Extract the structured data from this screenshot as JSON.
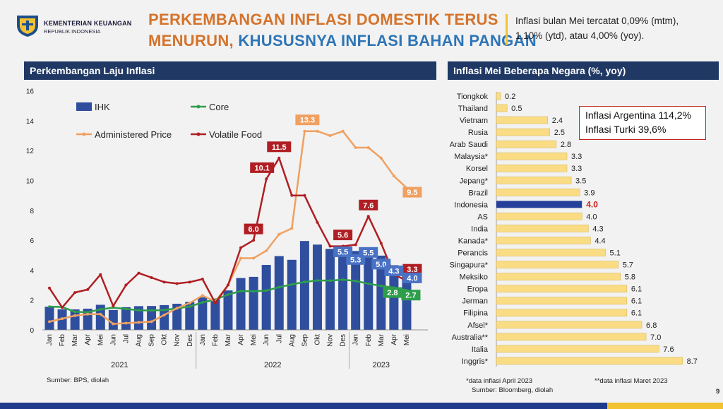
{
  "header": {
    "org_line1": "KEMENTERIAN KEUANGAN",
    "org_line2": "REPUBLIK INDONESIA",
    "title_line1": "PERKEMBANGAN INFLASI DOMESTIK TERUS",
    "title_line2_a": "MENURUN, ",
    "title_line2_b": "KHUSUSNYA INFLASI BAHAN PANGAN",
    "summary_line1": "Inflasi bulan Mei tercatat 0,09% (mtm),",
    "summary_line2": "1,10% (ytd), atau 4,00% (yoy).",
    "page_number": "9"
  },
  "left_panel": {
    "heading": "Perkembangan Laju Inflasi",
    "source": "Sumber: BPS, diolah"
  },
  "right_panel": {
    "heading": "Inflasi Mei Beberapa Negara (%, yoy)",
    "callout_line1": "Inflasi Argentina 114,2%",
    "callout_line2": "Inflasi Turki 39,6%",
    "note1": "*data inflasi April 2023",
    "note2": "**data inflasi Maret 2023",
    "source": "Sumber: Bloomberg, diolah"
  },
  "colors": {
    "ihk": "#2f4f9e",
    "core": "#2e9e4a",
    "administered": "#f0a060",
    "volatile": "#b01e23",
    "country_bar": "#f9dc84",
    "indonesia_bar": "#24409a",
    "indonesia_label": "#d0201a"
  },
  "chart_data": [
    {
      "type": "bar+line",
      "categories": [
        "Jan",
        "Feb",
        "Mar",
        "Apr",
        "Mei",
        "Jun",
        "Jul",
        "Aug",
        "Sep",
        "Okt",
        "Nov",
        "Des",
        "Jan",
        "Feb",
        "Mar",
        "Apr",
        "Mei",
        "Jun",
        "Jul",
        "Aug",
        "Sep",
        "Okt",
        "Nov",
        "Des",
        "Jan",
        "Feb",
        "Mar",
        "Apr",
        "Mei"
      ],
      "year_labels": [
        "2021",
        "2022",
        "2023"
      ],
      "ylim": [
        0,
        16
      ],
      "yticks": [
        "0",
        "2",
        "4",
        "6",
        "8",
        "10",
        "12",
        "14",
        "16"
      ],
      "series": [
        {
          "name": "IHK",
          "type": "bar",
          "values": [
            1.55,
            1.38,
            1.37,
            1.42,
            1.68,
            1.33,
            1.52,
            1.59,
            1.6,
            1.66,
            1.75,
            1.87,
            2.18,
            2.06,
            2.64,
            3.47,
            3.55,
            4.35,
            4.94,
            4.69,
            5.95,
            5.71,
            5.42,
            5.51,
            5.28,
            5.47,
            4.97,
            4.33,
            4.0
          ]
        },
        {
          "name": "Core",
          "type": "line",
          "values": [
            1.56,
            1.53,
            1.21,
            1.18,
            1.37,
            1.49,
            1.4,
            1.31,
            1.3,
            1.33,
            1.44,
            1.56,
            1.84,
            2.03,
            2.37,
            2.6,
            2.58,
            2.63,
            2.86,
            3.04,
            3.21,
            3.31,
            3.3,
            3.36,
            3.27,
            3.09,
            2.94,
            2.83,
            2.66
          ]
        },
        {
          "name": "Administered Price",
          "type": "line",
          "values": [
            0.55,
            0.75,
            0.95,
            1.05,
            1.05,
            0.4,
            0.45,
            0.5,
            0.55,
            1.0,
            1.45,
            1.8,
            2.3,
            1.9,
            3.0,
            4.8,
            4.8,
            5.3,
            6.4,
            6.8,
            13.3,
            13.3,
            13.0,
            13.3,
            12.2,
            12.2,
            11.5,
            10.3,
            9.5
          ]
        },
        {
          "name": "Volatile Food",
          "type": "line",
          "values": [
            2.8,
            1.5,
            2.5,
            2.7,
            3.7,
            1.6,
            3.0,
            3.8,
            3.5,
            3.2,
            3.1,
            3.2,
            3.4,
            1.8,
            3.0,
            5.5,
            6.0,
            10.1,
            11.5,
            9.0,
            9.0,
            7.2,
            5.6,
            5.6,
            5.7,
            7.6,
            5.8,
            3.7,
            3.3
          ]
        }
      ],
      "data_labels": [
        {
          "series": "Volatile Food",
          "index": 16,
          "text": "6.0"
        },
        {
          "series": "Volatile Food",
          "index": 17,
          "text": "10.1"
        },
        {
          "series": "Volatile Food",
          "index": 18,
          "text": "11.5"
        },
        {
          "series": "Volatile Food",
          "index": 23,
          "text": "5.6"
        },
        {
          "series": "Volatile Food",
          "index": 25,
          "text": "7.6"
        },
        {
          "series": "Volatile Food",
          "index": 28,
          "text": "3.3"
        },
        {
          "series": "Administered Price",
          "index": 20,
          "text": "13.3"
        },
        {
          "series": "Administered Price",
          "index": 28,
          "text": "9.5"
        },
        {
          "series": "IHK",
          "index": 23,
          "text": "5.5"
        },
        {
          "series": "IHK",
          "index": 24,
          "text": "5.3"
        },
        {
          "series": "IHK",
          "index": 25,
          "text": "5.5"
        },
        {
          "series": "IHK",
          "index": 26,
          "text": "5.0"
        },
        {
          "series": "IHK",
          "index": 27,
          "text": "4.3"
        },
        {
          "series": "IHK",
          "index": 28,
          "text": "4.0"
        },
        {
          "series": "Core",
          "index": 27,
          "text": "2.8"
        },
        {
          "series": "Core",
          "index": 28,
          "text": "2.7"
        }
      ],
      "legend": [
        {
          "name": "IHK",
          "style": "bar"
        },
        {
          "name": "Core",
          "style": "line-marker"
        },
        {
          "name": "Administered Price",
          "style": "line-marker"
        },
        {
          "name": "Volatile Food",
          "style": "line-marker"
        }
      ],
      "legend_position": "top-left",
      "grid": false
    },
    {
      "type": "bar",
      "orientation": "horizontal",
      "categories": [
        "Tiongkok",
        "Thailand",
        "Vietnam",
        "Rusia",
        "Arab Saudi",
        "Malaysia*",
        "Korsel",
        "Jepang*",
        "Brazil",
        "Indonesia",
        "AS",
        "India",
        "Kanada*",
        "Perancis",
        "Singapura*",
        "Meksiko",
        "Eropa",
        "Jerman",
        "Filipina",
        "Afsel*",
        "Australia**",
        "Italia",
        "Inggris*"
      ],
      "values": [
        0.2,
        0.5,
        2.4,
        2.5,
        2.8,
        3.3,
        3.3,
        3.5,
        3.9,
        4.0,
        4.0,
        4.3,
        4.4,
        5.1,
        5.7,
        5.8,
        6.1,
        6.1,
        6.1,
        6.8,
        7.0,
        7.6,
        8.7
      ],
      "labels": [
        "0.2",
        "0.5",
        "2.4",
        "2.5",
        "2.8",
        "3.3",
        "3.3",
        "3.5",
        "3.9",
        "4.0",
        "4.0",
        "4.3",
        "4.4",
        "5.1",
        "5.7",
        "5.8",
        "6.1",
        "6.1",
        "6.1",
        "6.8",
        "7.0",
        "7.6",
        "8.7"
      ],
      "highlight": "Indonesia"
    }
  ]
}
